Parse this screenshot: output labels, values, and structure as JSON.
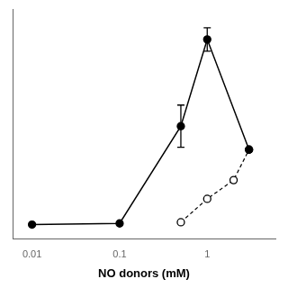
{
  "chart_data": {
    "type": "line",
    "xlabel": "NO donors (mM)",
    "log": "x",
    "xlim": [
      0.006,
      6.0
    ],
    "xticks": [
      0.01,
      0.1,
      1.0
    ],
    "ylim": [
      -3,
      95
    ],
    "tick_labels": "x",
    "grid": false,
    "series": [
      {
        "x": [
          0.01,
          0.1,
          0.5,
          1.0,
          3.0
        ],
        "values": [
          3.0,
          3.5,
          45.0,
          82.0,
          35.0
        ],
        "yerr": [
          0.0,
          0.0,
          9.0,
          5.0,
          0.0
        ],
        "color": "#000000",
        "marker": "filled_circle",
        "line_style": "solid"
      },
      {
        "x": [
          0.5,
          1.0,
          2.0,
          3.0
        ],
        "values": [
          4.0,
          14.0,
          22.0,
          35.0
        ],
        "color": "#000000",
        "marker": "open_circle",
        "line_style": "dashed"
      }
    ]
  }
}
